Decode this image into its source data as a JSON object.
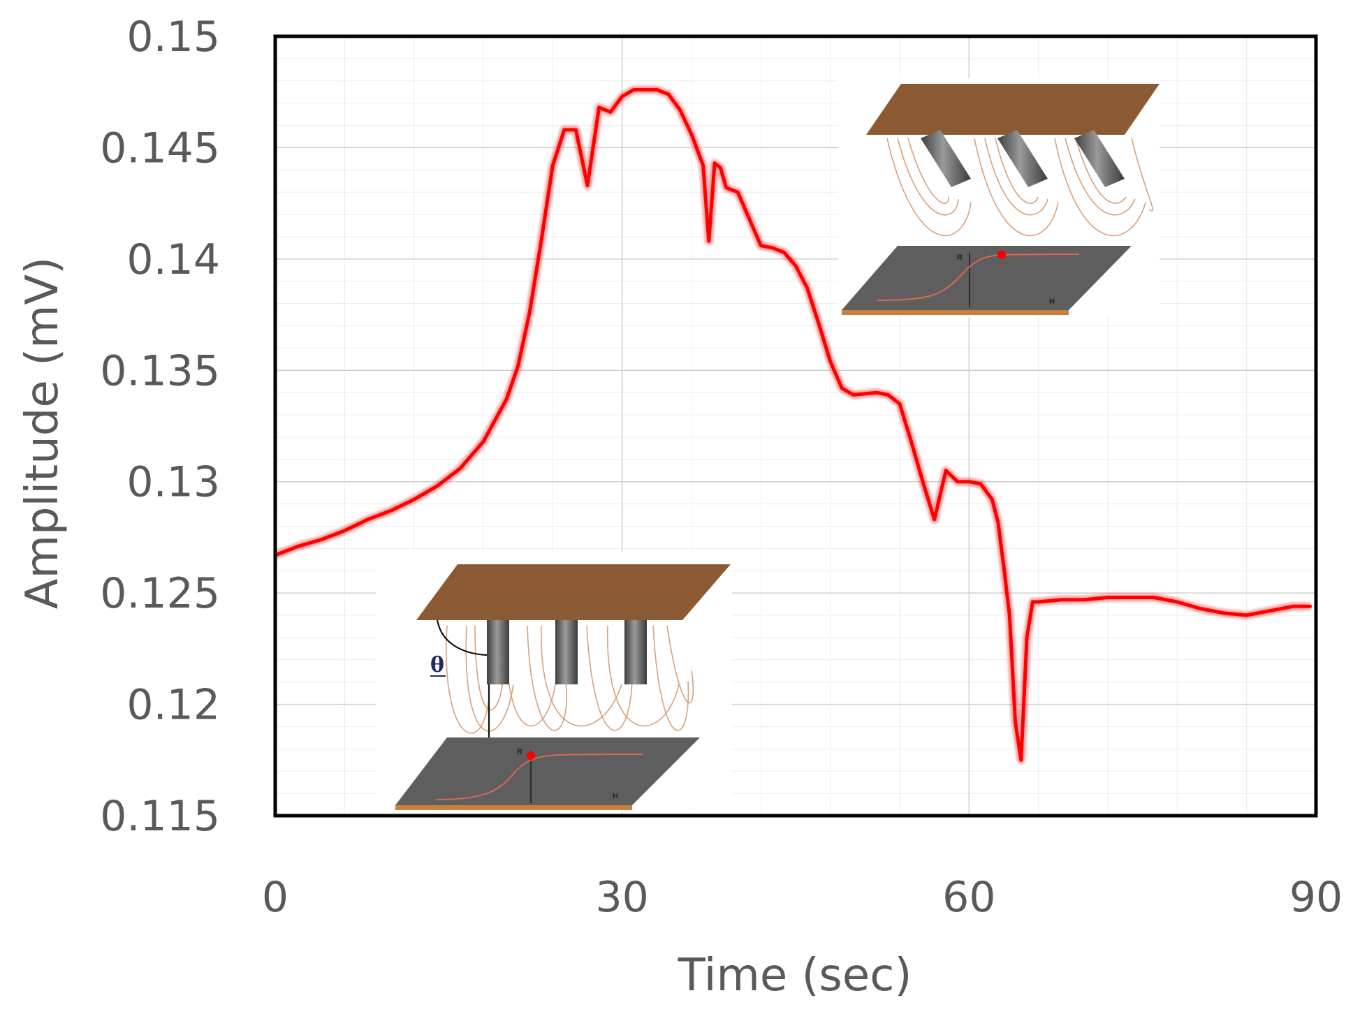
{
  "chart_data": {
    "type": "line",
    "title": "",
    "xlabel": "Time (sec)",
    "ylabel": "Amplitude (mV)",
    "xlim": [
      0,
      90
    ],
    "ylim": [
      0.115,
      0.15
    ],
    "x_ticks": [
      "0",
      "30",
      "60",
      "90"
    ],
    "y_ticks": [
      "0.115",
      "0.12",
      "0.125",
      "0.13",
      "0.135",
      "0.14",
      "0.145",
      "0.15"
    ],
    "grid": true,
    "series": [
      {
        "color": "#ff0000",
        "x": [
          0,
          2,
          4,
          6,
          8,
          10,
          12,
          14,
          16,
          18,
          20,
          21,
          22,
          23,
          24,
          25,
          26,
          27,
          28,
          29,
          30,
          31,
          32,
          33,
          34,
          35,
          36,
          37,
          37.5,
          38,
          38.5,
          39,
          40,
          41,
          42,
          43,
          44,
          45,
          46,
          47,
          48,
          49,
          50,
          52,
          53,
          54,
          55,
          56,
          57,
          58,
          59,
          60,
          61,
          62,
          62.5,
          63,
          63.5,
          64,
          64.5,
          65,
          65.5,
          66,
          68,
          70,
          72,
          74,
          76,
          78,
          80,
          82,
          84,
          86,
          88,
          89.5
        ],
        "y": [
          0.1267,
          0.1271,
          0.1274,
          0.1278,
          0.1283,
          0.1287,
          0.1292,
          0.1298,
          0.1306,
          0.1318,
          0.1337,
          0.1352,
          0.1376,
          0.1408,
          0.1442,
          0.1458,
          0.1458,
          0.1433,
          0.1468,
          0.1466,
          0.1473,
          0.1476,
          0.1476,
          0.1476,
          0.1474,
          0.1467,
          0.1456,
          0.1442,
          0.1408,
          0.1443,
          0.1441,
          0.1432,
          0.143,
          0.1418,
          0.1406,
          0.1405,
          0.1403,
          0.1397,
          0.1387,
          0.1371,
          0.1354,
          0.1342,
          0.1339,
          0.134,
          0.1339,
          0.1335,
          0.1318,
          0.13,
          0.1283,
          0.1305,
          0.13,
          0.13,
          0.1299,
          0.1292,
          0.1282,
          0.1262,
          0.124,
          0.1192,
          0.1175,
          0.123,
          0.1246,
          0.1246,
          0.1247,
          0.1247,
          0.1248,
          0.1248,
          0.1248,
          0.1246,
          0.1243,
          0.1241,
          0.124,
          0.1242,
          0.1244,
          0.1244
        ]
      }
    ],
    "insets": [
      {
        "labels": [
          "R",
          "H"
        ],
        "angle_symbol": ""
      },
      {
        "labels": [
          "R",
          "H"
        ],
        "angle_symbol": "θ"
      }
    ]
  }
}
